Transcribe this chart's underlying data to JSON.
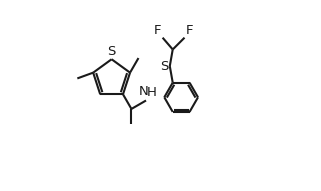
{
  "background_color": "#ffffff",
  "line_color": "#1a1a1a",
  "line_width": 1.5,
  "font_size": 9.5,
  "figsize": [
    3.21,
    1.91
  ],
  "dpi": 100,
  "xlim": [
    -0.05,
    1.05
  ],
  "ylim": [
    -0.05,
    1.05
  ]
}
